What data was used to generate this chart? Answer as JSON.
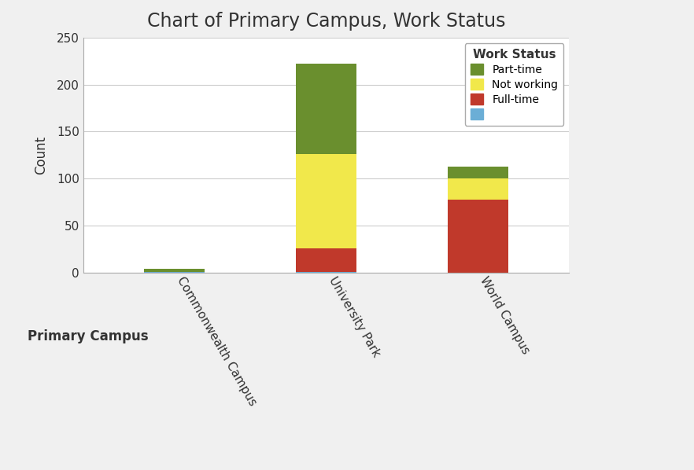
{
  "title": "Chart of Primary Campus, Work Status",
  "xlabel": "Primary Campus",
  "ylabel": "Count",
  "categories": [
    "Commonwealth Campus",
    "University Park",
    "World Campus"
  ],
  "series": {
    "blue_unknown": [
      1,
      1,
      0
    ],
    "full_time": [
      0,
      25,
      78
    ],
    "not_working": [
      0,
      100,
      22
    ],
    "part_time": [
      3,
      96,
      13
    ]
  },
  "colors": {
    "blue_unknown": "#6baed6",
    "full_time": "#c0392b",
    "not_working": "#f1e84b",
    "part_time": "#6a8f2e"
  },
  "legend_labels": {
    "part_time": "Part-time",
    "not_working": "Not working",
    "full_time": "Full-time",
    "blue_unknown": ""
  },
  "ylim": [
    0,
    250
  ],
  "yticks": [
    0,
    50,
    100,
    150,
    200,
    250
  ],
  "background_color": "#f0f0f0",
  "plot_bg_color": "#ffffff",
  "grid_color": "#cccccc",
  "title_fontsize": 17,
  "axis_label_fontsize": 12,
  "tick_fontsize": 11,
  "legend_title": "Work Status",
  "bar_width": 0.4
}
